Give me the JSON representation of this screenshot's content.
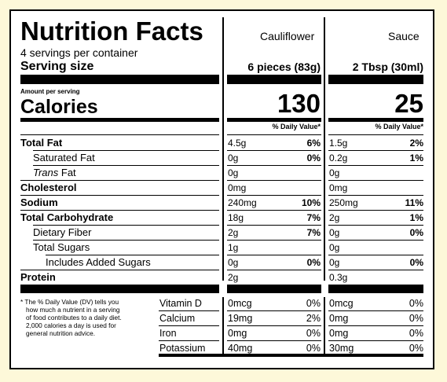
{
  "title": "Nutrition Facts",
  "servings_per_container": "4 servings per container",
  "serving_size_label": "Serving size",
  "amount_per_serving": "Amount per serving",
  "calories_label": "Calories",
  "dv_header": "% Daily Value*",
  "columns": [
    {
      "name": "Cauliflower",
      "serving": "6 pieces (83g)",
      "calories": "130"
    },
    {
      "name": "Sauce",
      "serving": "2 Tbsp (30ml)",
      "calories": "25"
    }
  ],
  "nutrients": [
    {
      "label": "Total Fat",
      "c_amt": "4.5g",
      "c_dv": "6%",
      "s_amt": "1.5g",
      "s_dv": "2%"
    },
    {
      "label": "Saturated Fat",
      "c_amt": "0g",
      "c_dv": "0%",
      "s_amt": "0.2g",
      "s_dv": "1%"
    },
    {
      "label_italic": "Trans",
      "label_rest": " Fat",
      "c_amt": "0g",
      "c_dv": "",
      "s_amt": "0g",
      "s_dv": ""
    },
    {
      "label": "Cholesterol",
      "c_amt": "0mg",
      "c_dv": "",
      "s_amt": "0mg",
      "s_dv": ""
    },
    {
      "label": "Sodium",
      "c_amt": "240mg",
      "c_dv": "10%",
      "s_amt": "250mg",
      "s_dv": "11%"
    },
    {
      "label": "Total Carbohydrate",
      "c_amt": "18g",
      "c_dv": "7%",
      "s_amt": "2g",
      "s_dv": "1%"
    },
    {
      "label": "Dietary Fiber",
      "c_amt": "2g",
      "c_dv": "7%",
      "s_amt": "0g",
      "s_dv": "0%"
    },
    {
      "label": "Total Sugars",
      "c_amt": "1g",
      "c_dv": "",
      "s_amt": "0g",
      "s_dv": ""
    },
    {
      "label": "Includes Added Sugars",
      "c_amt": "0g",
      "c_dv": "0%",
      "s_amt": "0g",
      "s_dv": "0%"
    },
    {
      "label": "Protein",
      "c_amt": "2g",
      "c_dv": "",
      "s_amt": "0.3g",
      "s_dv": ""
    }
  ],
  "footnote": [
    "* The % Daily Value (DV) tells you",
    "how much a nutrient in a serving",
    "of food contributes to a daily diet.",
    "2,000 calories a day is used for",
    "general nutrition advice."
  ],
  "vitamins": [
    {
      "label": "Vitamin D",
      "c_amt": "0mcg",
      "c_dv": "0%",
      "s_amt": "0mcg",
      "s_dv": "0%"
    },
    {
      "label": "Calcium",
      "c_amt": "19mg",
      "c_dv": "2%",
      "s_amt": "0mg",
      "s_dv": "0%"
    },
    {
      "label": "Iron",
      "c_amt": "0mg",
      "c_dv": "0%",
      "s_amt": "0mg",
      "s_dv": "0%"
    },
    {
      "label": "Potassium",
      "c_amt": "40mg",
      "c_dv": "0%",
      "s_amt": "30mg",
      "s_dv": "0%"
    }
  ]
}
